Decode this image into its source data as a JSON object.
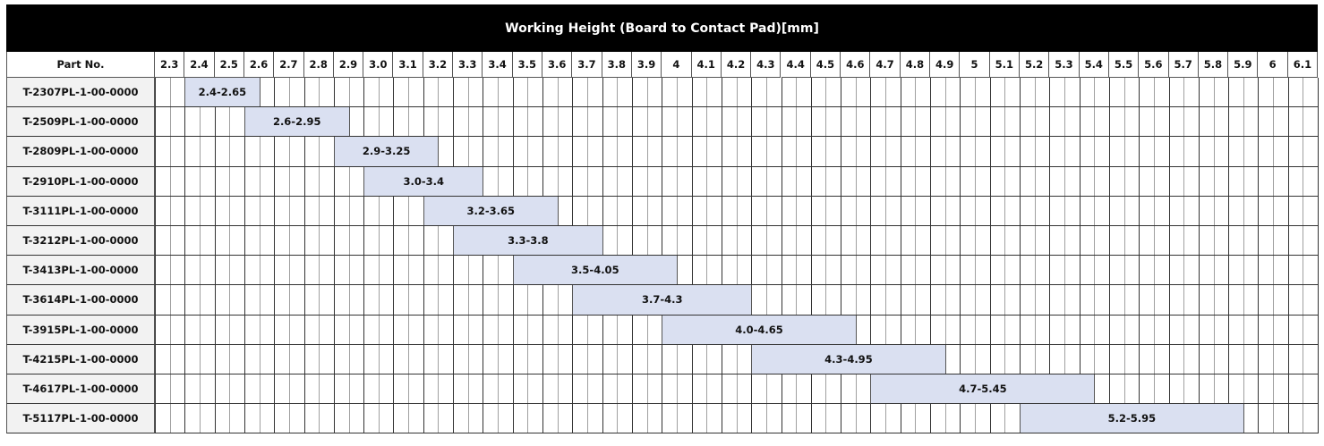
{
  "chart_data": {
    "type": "bar",
    "orientation": "horizontal-range",
    "title": "Working Height (Board to Contact Pad)[mm]",
    "row_header": "Part No.",
    "x_ticks": [
      "2.3",
      "2.4",
      "2.5",
      "2.6",
      "2.7",
      "2.8",
      "2.9",
      "3.0",
      "3.1",
      "3.2",
      "3.3",
      "3.4",
      "3.5",
      "3.6",
      "3.7",
      "3.8",
      "3.9",
      "4",
      "4.1",
      "4.2",
      "4.3",
      "4.4",
      "4.5",
      "4.6",
      "4.7",
      "4.8",
      "4.9",
      "5",
      "5.1",
      "5.2",
      "5.3",
      "5.4",
      "5.5",
      "5.6",
      "5.7",
      "5.8",
      "5.9",
      "6",
      "6.1"
    ],
    "xlim": [
      2.3,
      6.2
    ],
    "bar_color": "#dae0f1",
    "header_color": "#000000",
    "rows": [
      {
        "part": "T-2307PL-1-00-0000",
        "min": 2.4,
        "max": 2.65,
        "label": "2.4-2.65"
      },
      {
        "part": "T-2509PL-1-00-0000",
        "min": 2.6,
        "max": 2.95,
        "label": "2.6-2.95"
      },
      {
        "part": "T-2809PL-1-00-0000",
        "min": 2.9,
        "max": 3.25,
        "label": "2.9-3.25"
      },
      {
        "part": "T-2910PL-1-00-0000",
        "min": 3.0,
        "max": 3.4,
        "label": "3.0-3.4"
      },
      {
        "part": "T-3111PL-1-00-0000",
        "min": 3.2,
        "max": 3.65,
        "label": "3.2-3.65"
      },
      {
        "part": "T-3212PL-1-00-0000",
        "min": 3.3,
        "max": 3.8,
        "label": "3.3-3.8"
      },
      {
        "part": "T-3413PL-1-00-0000",
        "min": 3.5,
        "max": 4.05,
        "label": "3.5-4.05"
      },
      {
        "part": "T-3614PL-1-00-0000",
        "min": 3.7,
        "max": 4.3,
        "label": "3.7-4.3"
      },
      {
        "part": "T-3915PL-1-00-0000",
        "min": 4.0,
        "max": 4.65,
        "label": "4.0-4.65"
      },
      {
        "part": "T-4215PL-1-00-0000",
        "min": 4.3,
        "max": 4.95,
        "label": "4.3-4.95"
      },
      {
        "part": "T-4617PL-1-00-0000",
        "min": 4.7,
        "max": 5.45,
        "label": "4.7-5.45"
      },
      {
        "part": "T-5117PL-1-00-0000",
        "min": 5.2,
        "max": 5.95,
        "label": "5.2-5.95"
      }
    ]
  }
}
